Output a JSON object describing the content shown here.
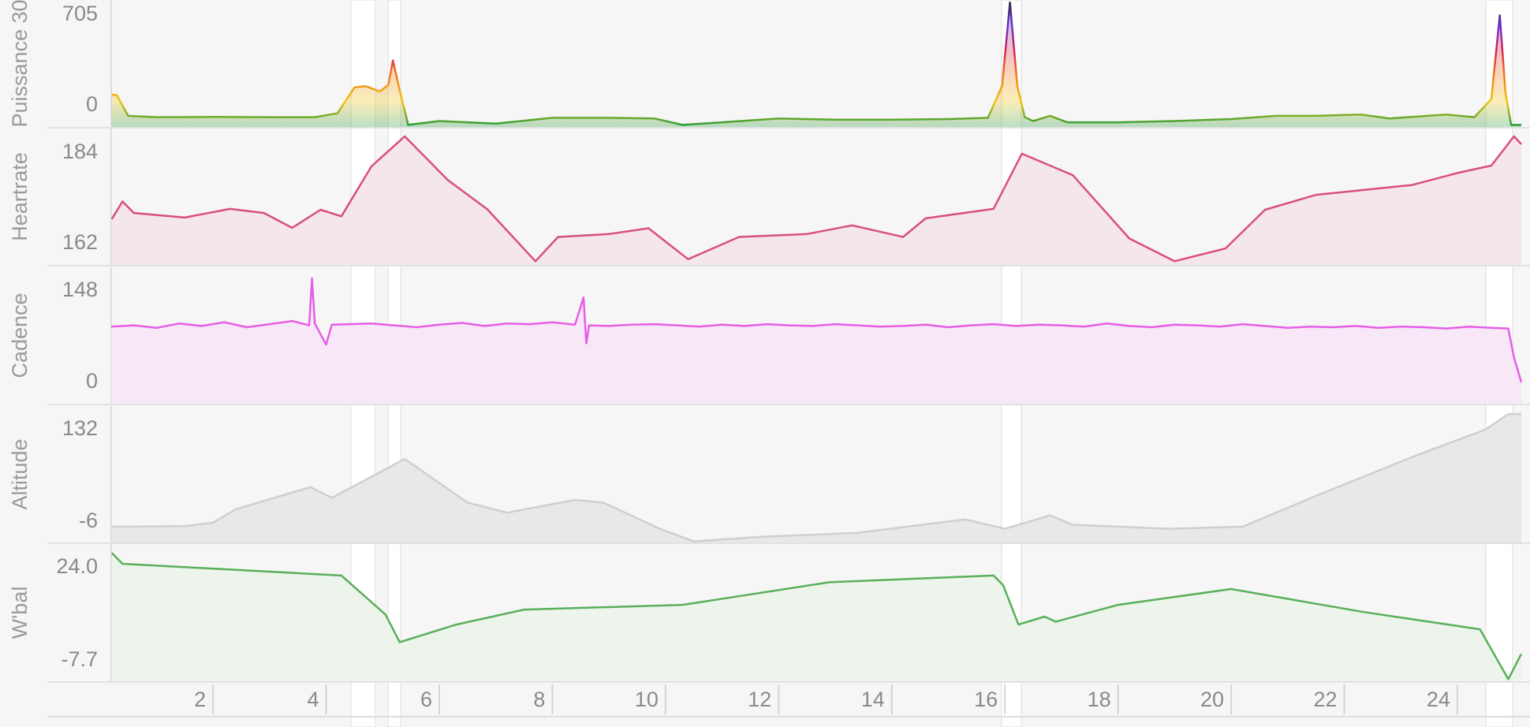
{
  "x_axis": {
    "xlim": [
      0.2,
      25.2
    ],
    "xticks": [
      2,
      4,
      6,
      8,
      10,
      12,
      14,
      16,
      18,
      20,
      22,
      24
    ]
  },
  "chart_data": [
    {
      "type": "line",
      "y_label": "Puissance 30",
      "x": [
        0.21,
        0.3,
        0.5,
        1.0,
        2.0,
        3.0,
        3.8,
        4.2,
        4.5,
        4.7,
        4.95,
        5.1,
        5.18,
        5.3,
        5.45,
        6.0,
        7.0,
        8.0,
        9.0,
        9.8,
        10.3,
        11.0,
        12.0,
        13.0,
        14.0,
        15.0,
        15.7,
        15.95,
        16.09,
        16.22,
        16.35,
        16.5,
        16.8,
        17.1,
        18.0,
        19.0,
        20.0,
        20.8,
        21.5,
        22.3,
        22.8,
        23.3,
        23.8,
        24.3,
        24.6,
        24.75,
        24.85,
        24.95,
        25.13
      ],
      "values": [
        85,
        80,
        -80,
        -90,
        -88,
        -90,
        -90,
        -60,
        140,
        150,
        110,
        160,
        350,
        120,
        -150,
        -120,
        -140,
        -95,
        -95,
        -100,
        -150,
        -130,
        -100,
        -110,
        -110,
        -105,
        -95,
        150,
        800,
        150,
        -90,
        -120,
        -80,
        -130,
        -130,
        -120,
        -105,
        -80,
        -80,
        -70,
        -100,
        -85,
        -70,
        -90,
        50,
        700,
        100,
        -150,
        -150
      ],
      "zone_colors": [
        "#1e9a3c",
        "#f2c414",
        "#ef7f1a",
        "#d8244f",
        "#6a2fd2",
        "#30303c"
      ],
      "ylim": [
        -166,
        819
      ],
      "yticks": [
        705,
        0
      ]
    },
    {
      "type": "line",
      "y_label": "Heartrate",
      "x": [
        0.21,
        0.4,
        0.6,
        1.5,
        2.3,
        2.9,
        3.4,
        3.9,
        4.27,
        4.8,
        5.39,
        6.15,
        6.85,
        7.7,
        8.1,
        9.0,
        9.7,
        10.4,
        11.3,
        12.5,
        13.3,
        14.2,
        14.6,
        15.8,
        16.3,
        17.2,
        18.2,
        19.0,
        19.9,
        20.6,
        21.5,
        23.2,
        24.0,
        24.6,
        25.0,
        25.13
      ],
      "values": [
        167.9,
        172.2,
        169.4,
        168.3,
        170.4,
        169.4,
        165.8,
        170.2,
        168.6,
        180.7,
        188.0,
        177.4,
        170.3,
        157.7,
        163.6,
        164.3,
        165.7,
        158.2,
        163.6,
        164.3,
        166.4,
        163.6,
        168.1,
        170.4,
        183.8,
        178.6,
        163.2,
        157.7,
        160.8,
        170.2,
        173.8,
        176.2,
        179.1,
        180.9,
        188.0,
        186.1
      ],
      "color": "#d94f7b",
      "fill": "#f5e6eb",
      "ylim": [
        156.8,
        189.9
      ],
      "yticks": [
        184,
        162
      ]
    },
    {
      "type": "line",
      "y_label": "Cadence",
      "x": [
        0.2,
        0.6,
        1.0,
        1.4,
        1.8,
        2.2,
        2.6,
        3.0,
        3.4,
        3.7,
        3.75,
        3.8,
        4.0,
        4.1,
        4.4,
        4.8,
        5.2,
        5.6,
        6.0,
        6.4,
        6.8,
        7.2,
        7.6,
        8.0,
        8.4,
        8.55,
        8.6,
        8.65,
        9.0,
        9.4,
        9.8,
        10.2,
        10.6,
        11.0,
        11.4,
        11.8,
        12.2,
        12.6,
        13.0,
        13.4,
        13.8,
        14.2,
        14.6,
        15.0,
        15.4,
        15.8,
        16.2,
        16.6,
        17.0,
        17.4,
        17.8,
        18.2,
        18.6,
        19.0,
        19.4,
        19.8,
        20.2,
        20.6,
        21.0,
        21.4,
        21.8,
        22.2,
        22.6,
        23.0,
        23.4,
        23.8,
        24.2,
        24.6,
        24.9,
        25.0,
        25.13
      ],
      "values": [
        90,
        92,
        88,
        95,
        91,
        97,
        89,
        94,
        99,
        92,
        168,
        95,
        61,
        93,
        94,
        95,
        92,
        89,
        93,
        96,
        91,
        95,
        94,
        97,
        93,
        137,
        63,
        92,
        91,
        93,
        94,
        92,
        90,
        93,
        91,
        94,
        92,
        91,
        94,
        92,
        90,
        91,
        93,
        89,
        92,
        94,
        91,
        93,
        92,
        90,
        95,
        91,
        89,
        93,
        92,
        90,
        94,
        91,
        88,
        90,
        89,
        91,
        88,
        90,
        89,
        87,
        90,
        88,
        87,
        40,
        0
      ],
      "color": "#e65ee6",
      "fill": "#f7e7f7",
      "ylim": [
        -34.6,
        185.8
      ],
      "yticks": [
        148,
        0
      ]
    },
    {
      "type": "line",
      "y_label": "Altitude",
      "x": [
        0.21,
        1.5,
        2.0,
        2.4,
        3.72,
        4.1,
        5.39,
        6.5,
        7.2,
        8.4,
        8.9,
        9.9,
        10.5,
        11.7,
        13.4,
        15.3,
        16.0,
        16.8,
        17.2,
        18.9,
        20.2,
        21.5,
        23.2,
        24.5,
        24.9,
        25.13
      ],
      "values": [
        -13,
        -12,
        -7,
        13,
        46,
        30,
        88,
        23,
        8,
        27,
        23,
        -16,
        -35,
        -28,
        -22,
        -2,
        -16,
        4,
        -10,
        -16,
        -13,
        33,
        91,
        132,
        155,
        155
      ],
      "color": "#cfcfcf",
      "fill": "#e8e8e8",
      "ylim": [
        -36.5,
        166.9
      ],
      "yticks": [
        132,
        -6
      ]
    },
    {
      "type": "line",
      "y_label": "W'bal",
      "x": [
        0.21,
        0.4,
        4.27,
        5.05,
        5.3,
        6.3,
        7.5,
        10.3,
        12.9,
        15.8,
        15.97,
        16.24,
        16.7,
        16.9,
        18.0,
        20.0,
        22.3,
        24.4,
        24.9,
        25.13
      ],
      "values": [
        29,
        25.3,
        21.3,
        8.0,
        -1.4,
        4.6,
        9.7,
        11.3,
        19,
        21.3,
        18,
        4.6,
        7.3,
        5.6,
        11.3,
        16.7,
        9,
        3,
        -14.0,
        -5.4
      ],
      "color": "#5aaf5a",
      "fill": "#edf4ec",
      "ylim": [
        -14.7,
        32
      ],
      "yticks": [
        {
          "value": 24,
          "label": "24.0"
        },
        -7.7
      ]
    }
  ]
}
